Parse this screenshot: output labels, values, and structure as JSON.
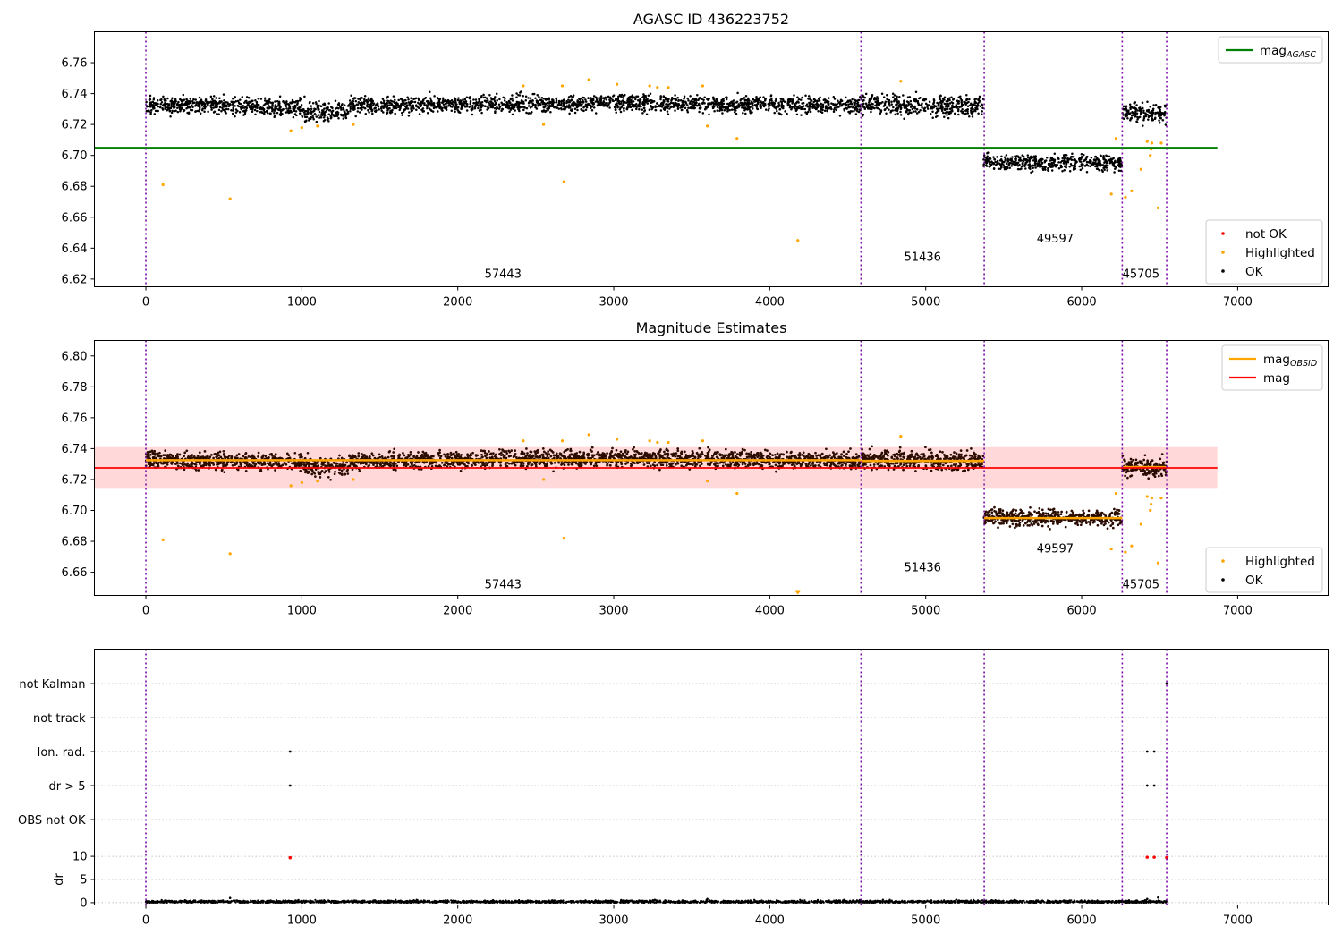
{
  "colors": {
    "ok": "#000000",
    "highlighted": "#ffa500",
    "not_ok": "#ff0000",
    "mag_agasc": "#008000",
    "mag_obsid": "#ffa500",
    "mag": "#ff0000",
    "band": "#ffcccc",
    "obsid_line": "#7b0aa6",
    "ok_magnitude_estimates": "#2a0c00"
  },
  "chart_data": [
    {
      "id": "agasc",
      "type": "scatter",
      "title": "AGASC ID 436223752",
      "xlim": [
        -330,
        7580
      ],
      "ylim": [
        6.615,
        6.78
      ],
      "xticks": [
        0,
        1000,
        2000,
        3000,
        4000,
        5000,
        6000,
        7000
      ],
      "xtick_labels": [
        "0",
        "1000",
        "2000",
        "3000",
        "4000",
        "5000",
        "6000",
        "7000"
      ],
      "yticks": [
        6.62,
        6.64,
        6.66,
        6.68,
        6.7,
        6.72,
        6.74,
        6.76
      ],
      "ytick_labels": [
        "6.62",
        "6.64",
        "6.66",
        "6.68",
        "6.70",
        "6.72",
        "6.74",
        "6.76"
      ],
      "reference_lines": [
        {
          "name": "mag",
          "sub": "AGASC",
          "y": 6.705,
          "x_range": [
            -330,
            6870
          ],
          "color_key": "mag_agasc"
        }
      ],
      "legend_top": [
        {
          "label": "mag",
          "sub": "AGASC",
          "kind": "line",
          "color_key": "mag_agasc"
        }
      ],
      "legend_bottom": [
        {
          "label": "not OK",
          "kind": "dot",
          "color_key": "not_ok"
        },
        {
          "label": "Highlighted",
          "kind": "dot",
          "color_key": "highlighted"
        },
        {
          "label": "OK",
          "kind": "dot",
          "color_key": "ok"
        }
      ],
      "segments": [
        {
          "obsid": "57443",
          "x_range": [
            0,
            4580
          ],
          "bands": [
            {
              "x0": 0,
              "x1": 1000,
              "mean0": 6.733,
              "mean1": 6.731,
              "spread": 0.007
            },
            {
              "x0": 1000,
              "x1": 1300,
              "mean0": 6.729,
              "mean1": 6.728,
              "spread": 0.008
            },
            {
              "x0": 1300,
              "x1": 2000,
              "mean0": 6.732,
              "mean1": 6.733,
              "spread": 0.007
            },
            {
              "x0": 2000,
              "x1": 3000,
              "mean0": 6.733,
              "mean1": 6.734,
              "spread": 0.007
            },
            {
              "x0": 3000,
              "x1": 4580,
              "mean0": 6.734,
              "mean1": 6.732,
              "spread": 0.007
            }
          ]
        },
        {
          "obsid": "51436",
          "x_range": [
            4580,
            5370
          ],
          "bands": [
            {
              "x0": 4580,
              "x1": 5370,
              "mean0": 6.733,
              "mean1": 6.732,
              "spread": 0.008
            }
          ]
        },
        {
          "obsid": "49597",
          "x_range": [
            5370,
            6260
          ],
          "bands": [
            {
              "x0": 5370,
              "x1": 6260,
              "mean0": 6.696,
              "mean1": 6.695,
              "spread": 0.007
            }
          ]
        },
        {
          "obsid": "45705",
          "x_range": [
            6260,
            6545
          ],
          "bands": [
            {
              "x0": 6260,
              "x1": 6545,
              "mean0": 6.728,
              "mean1": 6.727,
              "spread": 0.008
            }
          ]
        }
      ],
      "obsid_labels": [
        {
          "text": "57443",
          "x": 2290,
          "y": 6.623
        },
        {
          "text": "51436",
          "x": 4980,
          "y": 6.634
        },
        {
          "text": "49597",
          "x": 5830,
          "y": 6.646
        },
        {
          "text": "45705",
          "x": 6380,
          "y": 6.623
        }
      ],
      "obsid_boundaries": [
        0,
        4585,
        5375,
        6260,
        6545
      ],
      "highlighted_points": [
        [
          110,
          6.681
        ],
        [
          540,
          6.672
        ],
        [
          930,
          6.716
        ],
        [
          1000,
          6.718
        ],
        [
          1100,
          6.719
        ],
        [
          1330,
          6.72
        ],
        [
          2420,
          6.745
        ],
        [
          2550,
          6.72
        ],
        [
          2670,
          6.745
        ],
        [
          2680,
          6.683
        ],
        [
          2840,
          6.749
        ],
        [
          3020,
          6.746
        ],
        [
          3230,
          6.745
        ],
        [
          3280,
          6.744
        ],
        [
          3350,
          6.744
        ],
        [
          3570,
          6.745
        ],
        [
          3600,
          6.719
        ],
        [
          3790,
          6.711
        ],
        [
          4180,
          6.645
        ],
        [
          4840,
          6.748
        ],
        [
          6190,
          6.675
        ],
        [
          6220,
          6.711
        ],
        [
          6280,
          6.673
        ],
        [
          6320,
          6.677
        ],
        [
          6380,
          6.691
        ],
        [
          6420,
          6.709
        ],
        [
          6440,
          6.7
        ],
        [
          6445,
          6.704
        ],
        [
          6450,
          6.708
        ],
        [
          6490,
          6.666
        ],
        [
          6510,
          6.708
        ]
      ]
    },
    {
      "id": "estimates",
      "type": "scatter",
      "title": "Magnitude Estimates",
      "xlim": [
        -330,
        7580
      ],
      "ylim": [
        6.645,
        6.81
      ],
      "xticks": [
        0,
        1000,
        2000,
        3000,
        4000,
        5000,
        6000,
        7000
      ],
      "xtick_labels": [
        "0",
        "1000",
        "2000",
        "3000",
        "4000",
        "5000",
        "6000",
        "7000"
      ],
      "yticks": [
        6.66,
        6.68,
        6.7,
        6.72,
        6.74,
        6.76,
        6.78,
        6.8
      ],
      "ytick_labels": [
        "6.66",
        "6.68",
        "6.70",
        "6.72",
        "6.74",
        "6.76",
        "6.78",
        "6.80"
      ],
      "band": {
        "y0": 6.714,
        "y1": 6.741,
        "x_range": [
          -330,
          6870
        ]
      },
      "reference_lines": [
        {
          "name": "mag",
          "y": 6.7275,
          "x_range": [
            -330,
            6870
          ],
          "color_key": "mag"
        }
      ],
      "obsid_mag_lines": [
        {
          "obsid": "57443",
          "x_range": [
            0,
            4585
          ],
          "y": 6.7325
        },
        {
          "obsid": "51436",
          "x_range": [
            4585,
            5375
          ],
          "y": 6.732
        },
        {
          "obsid": "49597",
          "x_range": [
            5375,
            6260
          ],
          "y": 6.695
        },
        {
          "obsid": "45705",
          "x_range": [
            6260,
            6545
          ],
          "y": 6.728
        }
      ],
      "legend_top": [
        {
          "label": "mag",
          "sub": "OBSID",
          "kind": "line",
          "color_key": "mag_obsid"
        },
        {
          "label": "mag",
          "kind": "line",
          "color_key": "mag"
        }
      ],
      "legend_bottom": [
        {
          "label": "Highlighted",
          "kind": "dot",
          "color_key": "highlighted"
        },
        {
          "label": "OK",
          "kind": "dot",
          "color_key": "ok"
        }
      ],
      "obsid_labels": [
        {
          "text": "57443",
          "x": 2290,
          "y": 6.652
        },
        {
          "text": "51436",
          "x": 4980,
          "y": 6.663
        },
        {
          "text": "49597",
          "x": 5830,
          "y": 6.675
        },
        {
          "text": "45705",
          "x": 6380,
          "y": 6.652
        }
      ],
      "obsid_boundaries": [
        0,
        4585,
        5375,
        6260,
        6545
      ],
      "highlighted_points": [
        [
          110,
          6.681
        ],
        [
          540,
          6.672
        ],
        [
          930,
          6.716
        ],
        [
          1000,
          6.718
        ],
        [
          1100,
          6.719
        ],
        [
          1330,
          6.72
        ],
        [
          2420,
          6.745
        ],
        [
          2550,
          6.72
        ],
        [
          2670,
          6.745
        ],
        [
          2680,
          6.682
        ],
        [
          2840,
          6.749
        ],
        [
          3020,
          6.746
        ],
        [
          3230,
          6.745
        ],
        [
          3280,
          6.744
        ],
        [
          3350,
          6.744
        ],
        [
          3570,
          6.745
        ],
        [
          3600,
          6.719
        ],
        [
          3790,
          6.711
        ],
        [
          4840,
          6.748
        ],
        [
          6190,
          6.675
        ],
        [
          6220,
          6.711
        ],
        [
          6280,
          6.673
        ],
        [
          6320,
          6.677
        ],
        [
          6380,
          6.691
        ],
        [
          6420,
          6.709
        ],
        [
          6440,
          6.7
        ],
        [
          6445,
          6.704
        ],
        [
          6450,
          6.708
        ],
        [
          6490,
          6.666
        ],
        [
          6510,
          6.708
        ]
      ],
      "offscale_marker": {
        "x": 4180
      }
    },
    {
      "id": "flags",
      "type": "scatter",
      "xlim": [
        -330,
        7580
      ],
      "categories": [
        "not Kalman",
        "not track",
        "Ion. rad.",
        "dr > 5",
        "OBS not OK"
      ],
      "flag_points": [
        {
          "category": "Ion. rad.",
          "x": [
            925,
            6420,
            6465
          ]
        },
        {
          "category": "dr > 5",
          "x": [
            925,
            6420,
            6465
          ]
        },
        {
          "category": "not Kalman",
          "x": [
            6545
          ]
        }
      ],
      "obsid_boundaries": [
        0,
        4585,
        5375,
        6260,
        6545
      ]
    },
    {
      "id": "dr",
      "type": "scatter",
      "ylabel": "dr",
      "xlim": [
        -330,
        7580
      ],
      "ylim": [
        -0.5,
        10.5
      ],
      "yticks": [
        0,
        5,
        10
      ],
      "ytick_labels": [
        "0",
        "5",
        "10"
      ],
      "xticks": [
        0,
        1000,
        2000,
        3000,
        4000,
        5000,
        6000,
        7000
      ],
      "xtick_labels": [
        "0",
        "1000",
        "2000",
        "3000",
        "4000",
        "5000",
        "6000",
        "7000"
      ],
      "baseline": {
        "x_range": [
          0,
          6545
        ],
        "mean": 0.2,
        "spread": 0.3
      },
      "outliers_ok": [
        [
          540,
          1.0
        ],
        [
          3600,
          0.8
        ],
        [
          6420,
          0.8
        ],
        [
          6490,
          1.1
        ]
      ],
      "not_ok_points": [
        [
          925,
          9.7
        ],
        [
          6420,
          9.8
        ],
        [
          6465,
          9.8
        ],
        [
          6545,
          9.7
        ]
      ],
      "obsid_boundaries": [
        0,
        4585,
        5375,
        6260,
        6545
      ]
    }
  ]
}
